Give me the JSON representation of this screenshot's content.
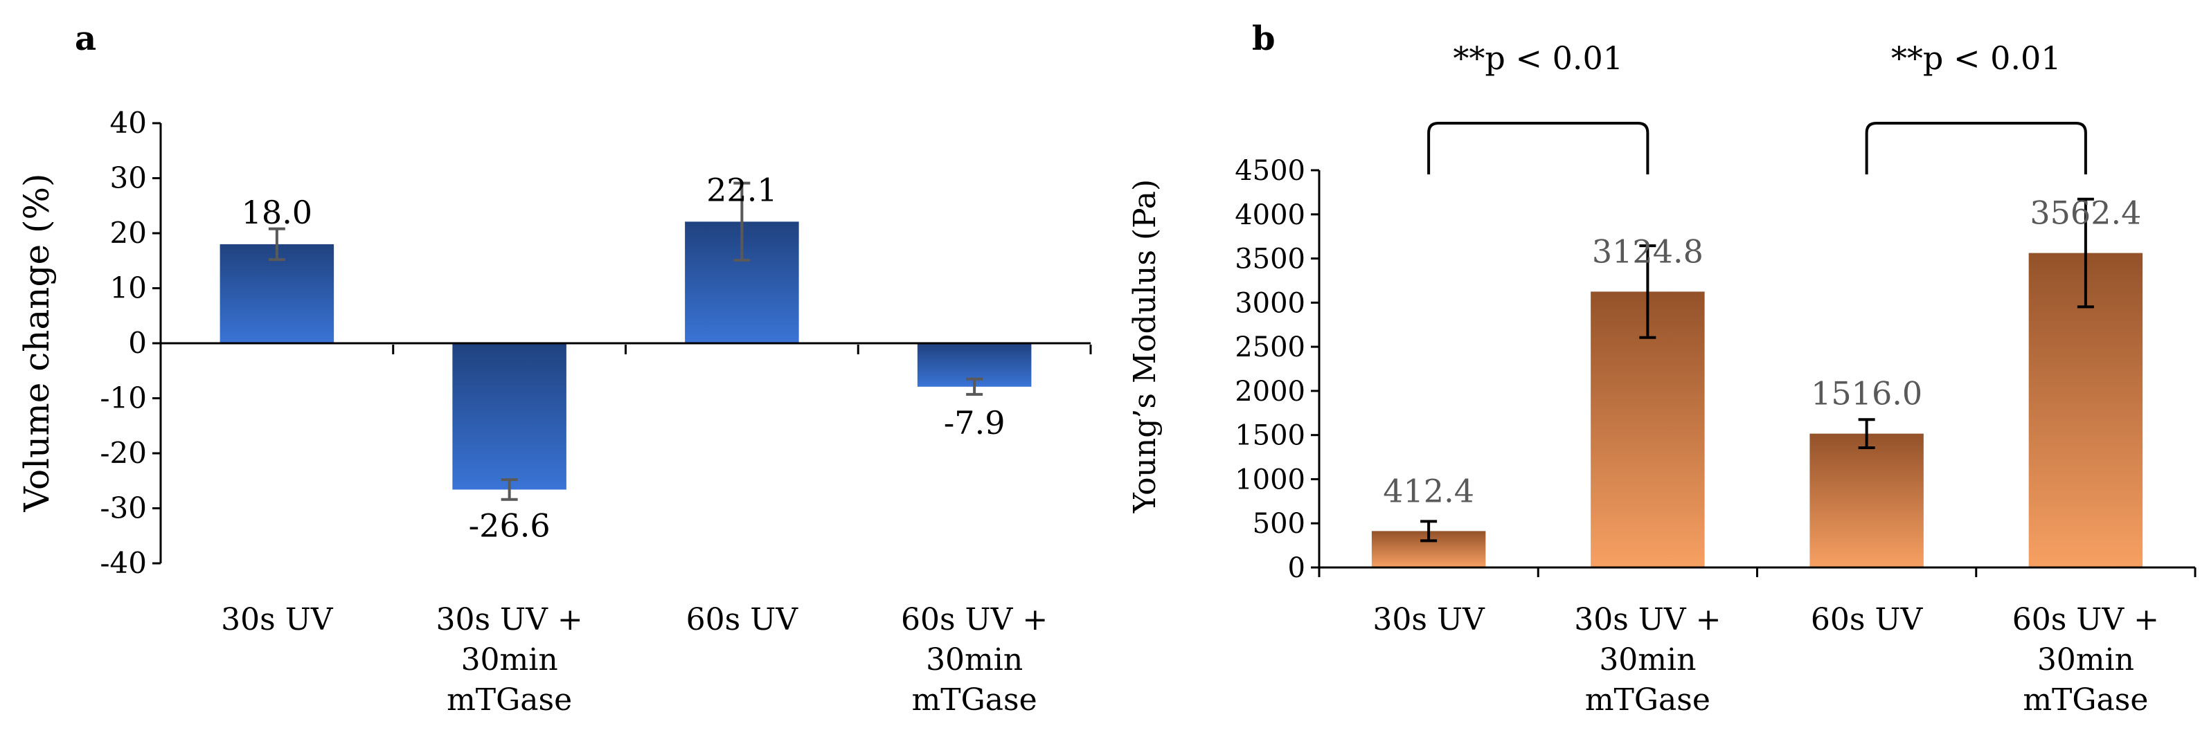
{
  "colors": {
    "blue_top": "#20427f",
    "blue_bottom": "#3a74d6",
    "orange_top": "#94522a",
    "orange_bottom": "#f7a063",
    "axis": "#000000",
    "label_gray": "#595959"
  },
  "chart_data": [
    {
      "panel": "a",
      "type": "bar",
      "ylabel": "Volume change (%)",
      "xlabel": "",
      "ylim": [
        -40,
        40
      ],
      "yticks": [
        40,
        30,
        20,
        10,
        0,
        -10,
        -20,
        -30,
        -40
      ],
      "categories": [
        [
          "30s UV"
        ],
        [
          "30s UV +",
          "30min",
          "mTGase"
        ],
        [
          "60s UV"
        ],
        [
          "60s UV +",
          "30min",
          "mTGase"
        ]
      ],
      "values": [
        18.0,
        -26.6,
        22.1,
        -7.9
      ],
      "value_labels": [
        "18.0",
        "-26.6",
        "22.1",
        "-7.9"
      ],
      "error_bars": [
        2.8,
        1.8,
        7.0,
        1.4
      ],
      "grid": false
    },
    {
      "panel": "b",
      "type": "bar",
      "ylabel": "Young’s Modulus (Pa)",
      "xlabel": "",
      "ylim": [
        0,
        4500
      ],
      "yticks": [
        4500,
        4000,
        3500,
        3000,
        2500,
        2000,
        1500,
        1000,
        500,
        0
      ],
      "categories": [
        [
          "30s UV"
        ],
        [
          "30s UV +",
          "30min",
          "mTGase"
        ],
        [
          "60s UV"
        ],
        [
          "60s UV +",
          "30min",
          "mTGase"
        ]
      ],
      "values": [
        412.4,
        3124.8,
        1516.0,
        3562.4
      ],
      "value_labels": [
        "412.4",
        "3124.8",
        "1516.0",
        "3562.4"
      ],
      "error_bars": [
        110,
        520,
        160,
        610
      ],
      "grid": false,
      "annotations": [
        {
          "text": "**p < 0.01",
          "from_category": 0,
          "to_category": 1
        },
        {
          "text": "**p < 0.01",
          "from_category": 2,
          "to_category": 3
        }
      ]
    }
  ]
}
